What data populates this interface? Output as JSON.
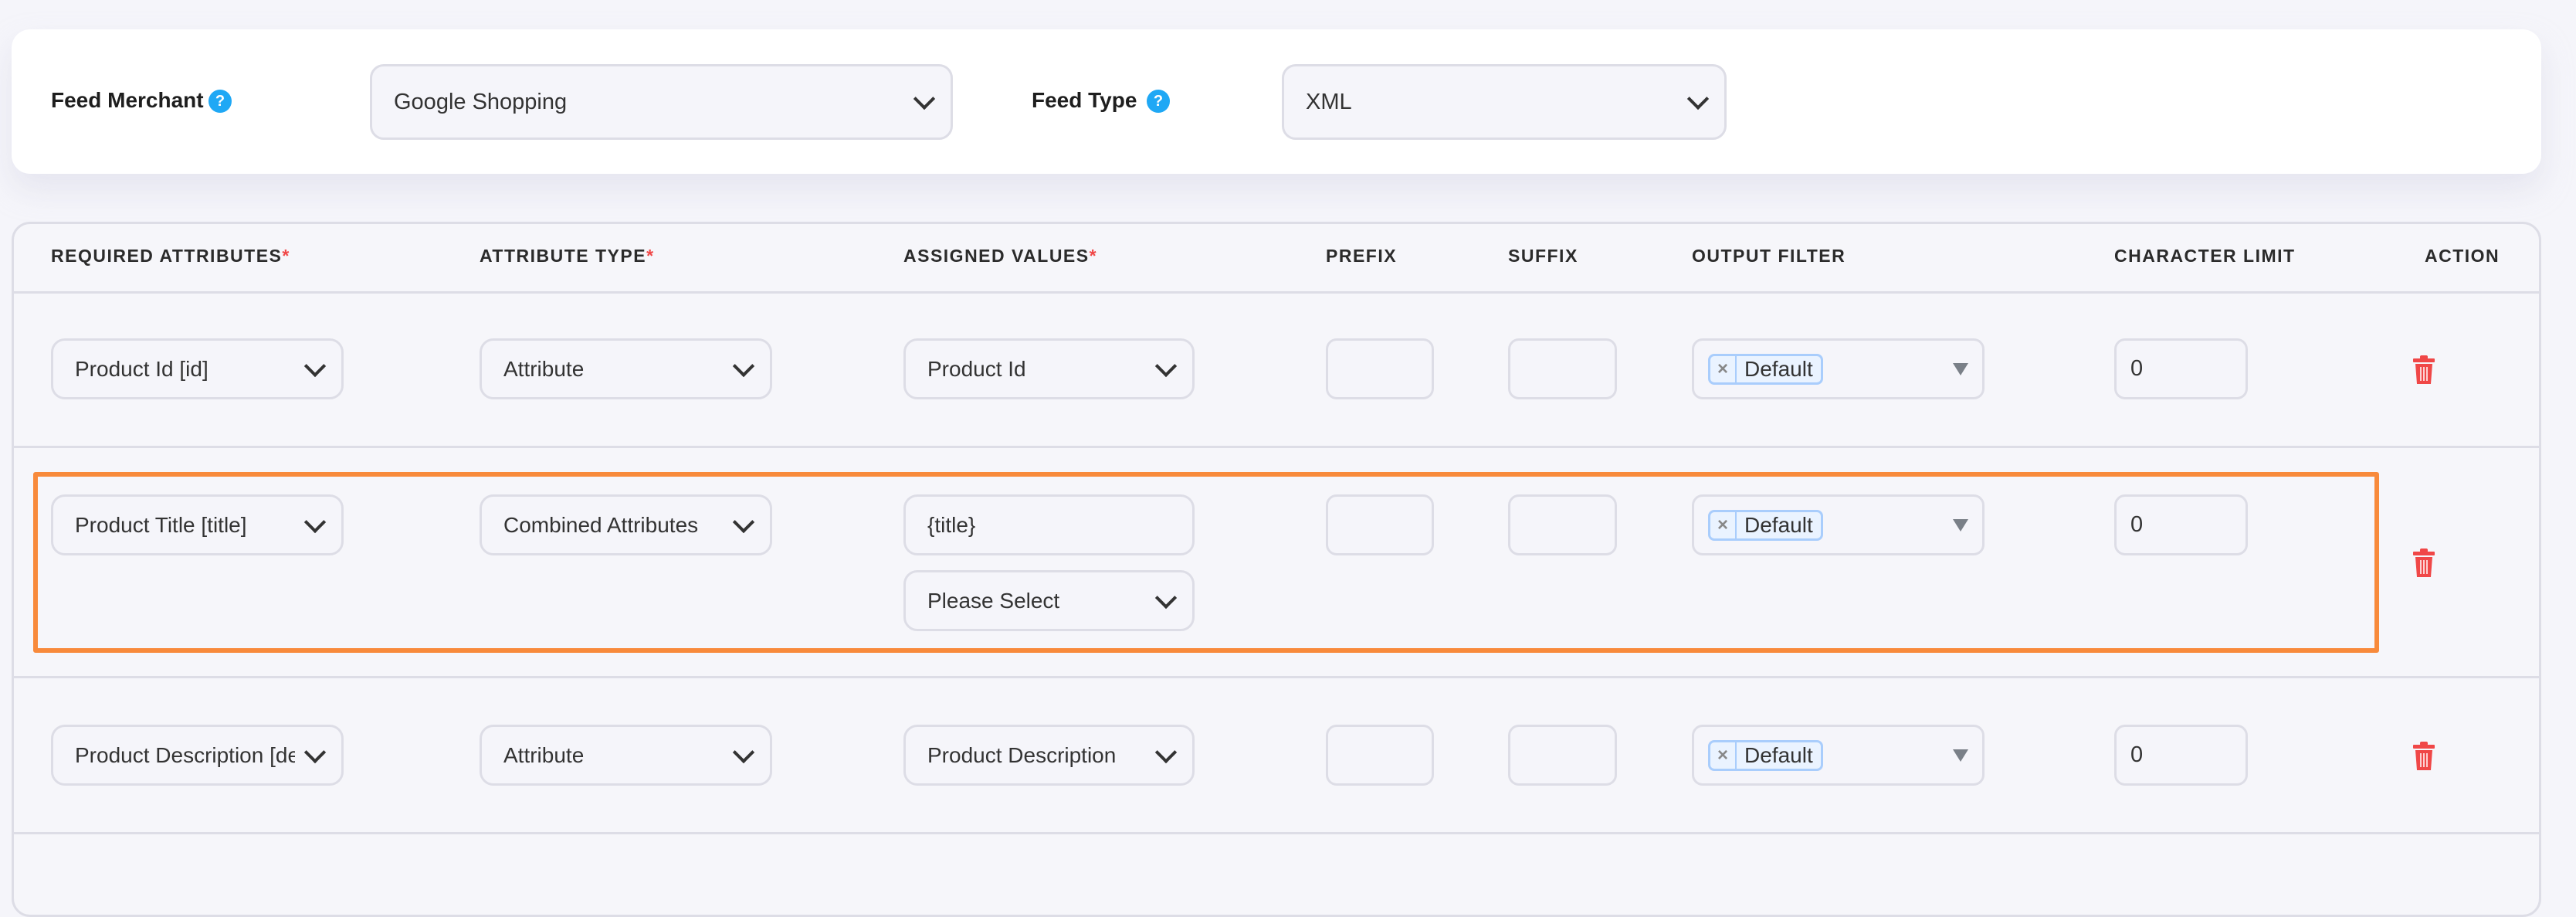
{
  "top": {
    "feed_merchant_label": "Feed Merchant",
    "feed_merchant_value": "Google Shopping",
    "feed_type_label": "Feed Type",
    "feed_type_value": "XML",
    "help_glyph": "?"
  },
  "table": {
    "headers": [
      "REQUIRED ATTRIBUTES",
      "ATTRIBUTE TYPE",
      "ASSIGNED VALUES",
      "PREFIX",
      "SUFFIX",
      "OUTPUT FILTER",
      "CHARACTER LIMIT",
      "ACTION"
    ],
    "required_mark": "*",
    "rows": [
      {
        "attribute": "Product Id [id]",
        "type": "Attribute",
        "value": "Product Id",
        "prefix": "",
        "suffix": "",
        "filter": "Default",
        "limit": "0"
      },
      {
        "attribute": "Product Title [title]",
        "type": "Combined Attributes",
        "value": "{title}",
        "value2": "Please Select",
        "prefix": "",
        "suffix": "",
        "filter": "Default",
        "limit": "0",
        "highlighted": true
      },
      {
        "attribute": "Product Description [description]",
        "type": "Attribute",
        "value": "Product Description",
        "prefix": "",
        "suffix": "",
        "filter": "Default",
        "limit": "0"
      }
    ],
    "tag_remove_glyph": "×"
  },
  "colors": {
    "accent_help": "#1fa8f5",
    "required": "#f04747",
    "delete": "#f04747",
    "highlight": "#f88a3b"
  }
}
